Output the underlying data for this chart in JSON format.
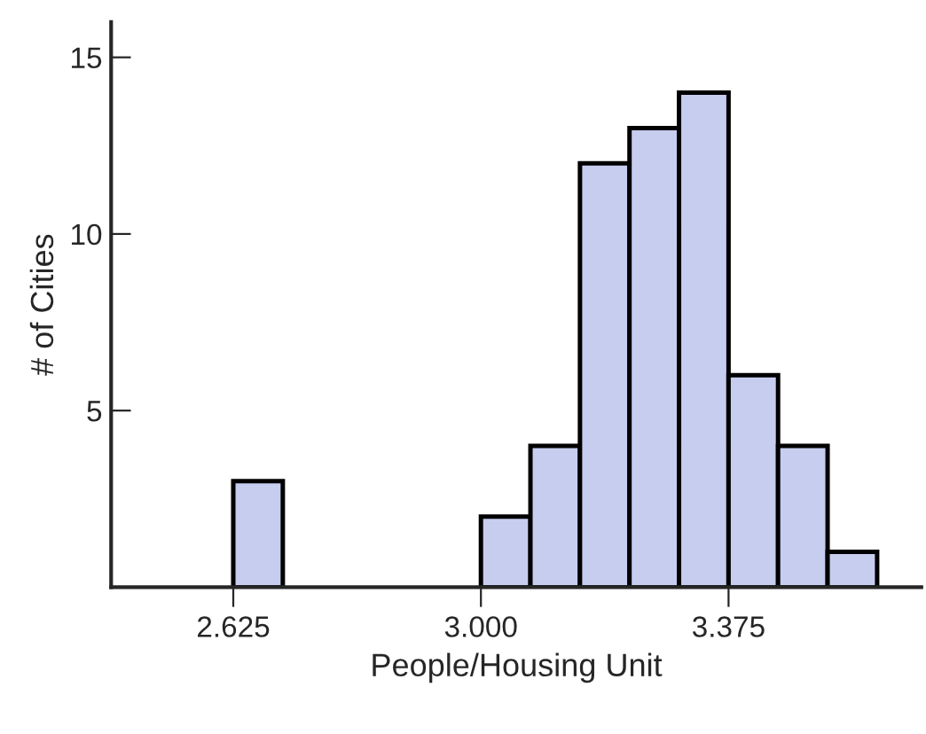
{
  "chart_data": {
    "type": "histogram",
    "xlabel": "People/Housing Unit",
    "ylabel": "# of Cities",
    "bins": [
      2.625,
      2.7,
      2.775,
      2.85,
      2.925,
      3.0,
      3.075,
      3.15,
      3.225,
      3.3,
      3.375,
      3.45,
      3.525,
      3.6
    ],
    "values": [
      3,
      0,
      0,
      0,
      0,
      2,
      4,
      12,
      13,
      14,
      6,
      4,
      1
    ],
    "color": "#c6cdef",
    "xlim": [
      2.44,
      3.667
    ],
    "ylim": [
      0,
      16
    ],
    "xticks": [
      {
        "value": 2.625,
        "label": "2.625"
      },
      {
        "value": 3.0,
        "label": "3.000"
      },
      {
        "value": 3.375,
        "label": "3.375"
      }
    ],
    "yticks": [
      5,
      10,
      15
    ],
    "grid": false
  }
}
